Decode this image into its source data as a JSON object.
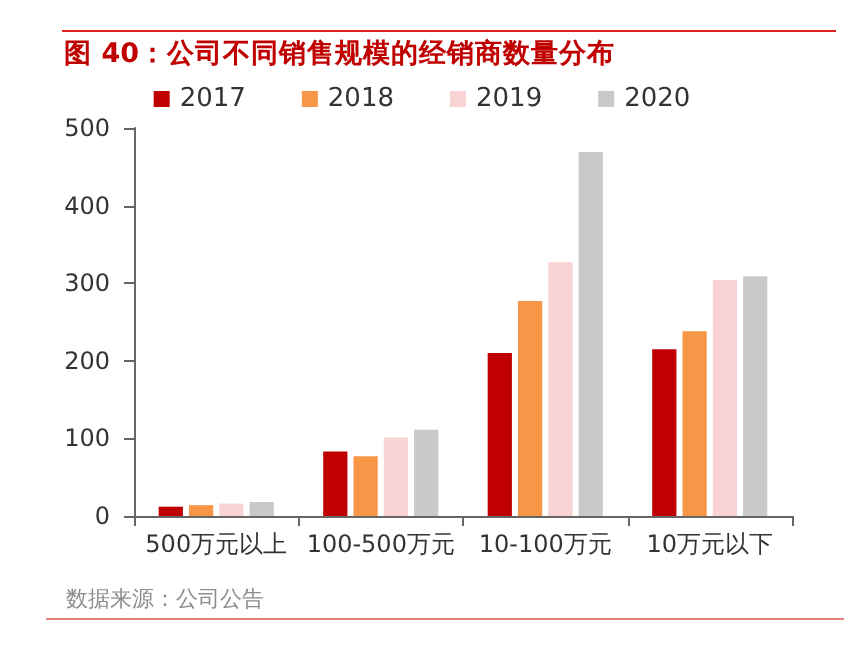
{
  "chart_data": {
    "type": "bar",
    "title": "图 40：公司不同销售规模的经销商数量分布",
    "categories": [
      "500万元以上",
      "100-500万元",
      "10-100万元",
      "10万元以下"
    ],
    "series": [
      {
        "name": "2017",
        "color": "#c00000",
        "values": [
          12,
          83,
          210,
          215
        ]
      },
      {
        "name": "2018",
        "color": "#f79646",
        "values": [
          14,
          77,
          277,
          238
        ]
      },
      {
        "name": "2019",
        "color": "#f9d3d3",
        "values": [
          16,
          101,
          327,
          304
        ]
      },
      {
        "name": "2020",
        "color": "#c9c9c9",
        "values": [
          18,
          111,
          469,
          309
        ]
      }
    ],
    "ylim": [
      0,
      500
    ],
    "yticks": [
      0,
      100,
      200,
      300,
      400,
      500
    ],
    "grid": false,
    "legend": "top",
    "annotations": [
      "数据来源：公司公告"
    ]
  }
}
